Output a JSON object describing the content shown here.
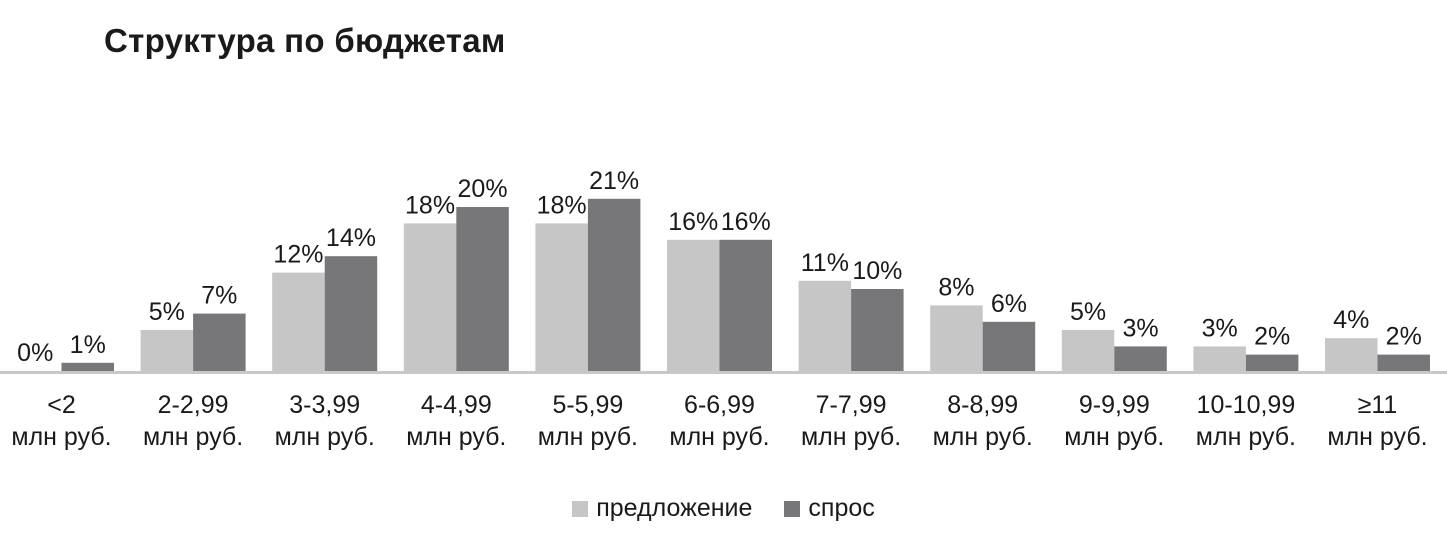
{
  "colors": {
    "supply": "#c6c6c6",
    "demand": "#77777a",
    "axis": "#c8c8c8",
    "text": "#1a1a1a"
  },
  "chart_data": {
    "type": "bar",
    "title": "Структура по бюджетам",
    "xlabel": "",
    "ylabel": "",
    "ylim": [
      0,
      25
    ],
    "grid": false,
    "legend_position": "bottom-center",
    "categories": [
      [
        "<2",
        "млн руб."
      ],
      [
        "2-2,99",
        "млн руб."
      ],
      [
        "3-3,99",
        "млн руб."
      ],
      [
        "4-4,99",
        "млн руб."
      ],
      [
        "5-5,99",
        "млн руб."
      ],
      [
        "6-6,99",
        "млн руб."
      ],
      [
        "7-7,99",
        "млн руб."
      ],
      [
        "8-8,99",
        "млн руб."
      ],
      [
        "9-9,99",
        "млн руб."
      ],
      [
        "10-10,99",
        "млн руб."
      ],
      [
        "≥11",
        "млн руб."
      ]
    ],
    "series": [
      {
        "name": "предложение",
        "color": "#c6c6c6",
        "values": [
          0,
          5,
          12,
          18,
          18,
          16,
          11,
          8,
          5,
          3,
          4
        ],
        "labels": [
          "0%",
          "5%",
          "12%",
          "18%",
          "18%",
          "16%",
          "11%",
          "8%",
          "5%",
          "3%",
          "4%"
        ]
      },
      {
        "name": "спрос",
        "color": "#77777a",
        "values": [
          1,
          7,
          14,
          20,
          21,
          16,
          10,
          6,
          3,
          2,
          2
        ],
        "labels": [
          "1%",
          "7%",
          "14%",
          "20%",
          "21%",
          "16%",
          "10%",
          "6%",
          "3%",
          "2%",
          "2%"
        ]
      }
    ]
  }
}
